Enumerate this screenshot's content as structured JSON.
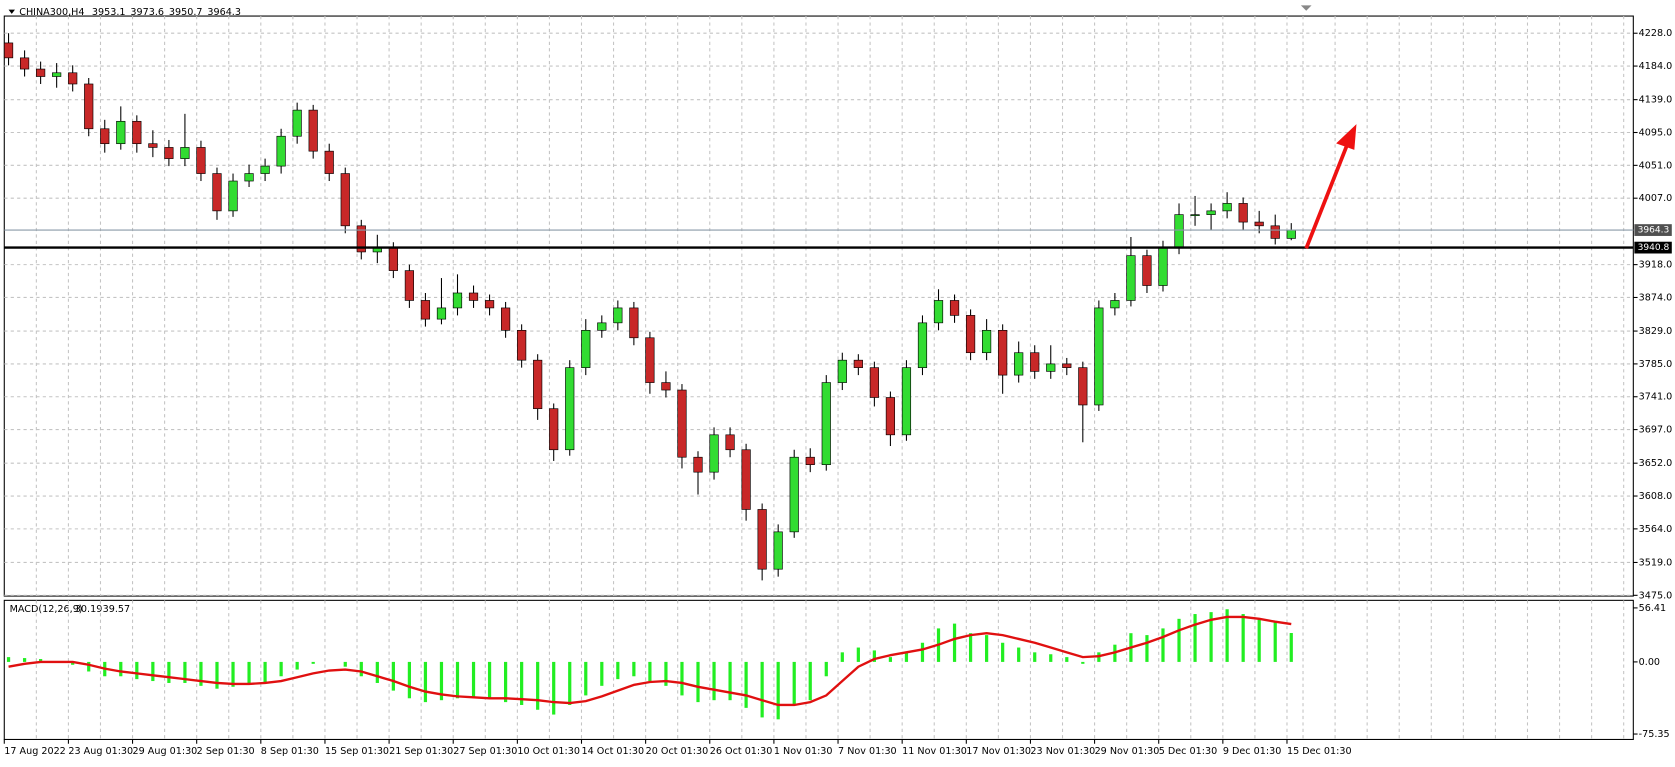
{
  "chart_data": [
    {
      "type": "candlestick",
      "title": "CHINA300,H4",
      "categories": [
        "17 Aug 2022",
        null,
        null,
        null,
        "23 Aug 01:30",
        null,
        null,
        null,
        "29 Aug 01:30",
        null,
        null,
        null,
        "2 Sep 01:30",
        null,
        null,
        null,
        "8 Sep 01:30",
        null,
        null,
        null,
        "15 Sep 01:30",
        null,
        null,
        null,
        "21 Sep 01:30",
        null,
        null,
        null,
        "27 Sep 01:30",
        null,
        null,
        null,
        "10 Oct 01:30",
        null,
        null,
        null,
        "14 Oct 01:30",
        null,
        null,
        null,
        "20 Oct 01:30",
        null,
        null,
        null,
        "26 Oct 01:30",
        null,
        null,
        null,
        "1 Nov 01:30",
        null,
        null,
        null,
        "7 Nov 01:30",
        null,
        null,
        null,
        "11 Nov 01:30",
        null,
        null,
        null,
        "17 Nov 01:30",
        null,
        null,
        null,
        "23 Nov 01:30",
        null,
        null,
        null,
        "29 Nov 01:30",
        null,
        null,
        null,
        "5 Dec 01:30",
        null,
        null,
        null,
        "9 Dec 01:30",
        null,
        null,
        null,
        "15 Dec 01:30"
      ],
      "candles": [
        [
          4215,
          4228,
          4185,
          4195
        ],
        [
          4195,
          4205,
          4170,
          4180
        ],
        [
          4180,
          4190,
          4160,
          4170
        ],
        [
          4170,
          4188,
          4155,
          4175
        ],
        [
          4175,
          4185,
          4150,
          4160
        ],
        [
          4160,
          4168,
          4090,
          4100
        ],
        [
          4100,
          4112,
          4068,
          4080
        ],
        [
          4080,
          4130,
          4072,
          4110
        ],
        [
          4110,
          4118,
          4068,
          4080
        ],
        [
          4080,
          4098,
          4062,
          4075
        ],
        [
          4075,
          4085,
          4050,
          4060
        ],
        [
          4060,
          4120,
          4050,
          4075
        ],
        [
          4075,
          4084,
          4030,
          4040
        ],
        [
          4040,
          4048,
          3978,
          3990
        ],
        [
          3990,
          4040,
          3982,
          4030
        ],
        [
          4030,
          4052,
          4022,
          4040
        ],
        [
          4040,
          4060,
          4030,
          4050
        ],
        [
          4050,
          4100,
          4040,
          4090
        ],
        [
          4090,
          4135,
          4080,
          4125
        ],
        [
          4125,
          4132,
          4060,
          4070
        ],
        [
          4070,
          4080,
          4030,
          4040
        ],
        [
          4040,
          4048,
          3960,
          3970
        ],
        [
          3970,
          3978,
          3925,
          3935
        ],
        [
          3935,
          3958,
          3920,
          3940
        ],
        [
          3940,
          3948,
          3900,
          3910
        ],
        [
          3910,
          3918,
          3860,
          3870
        ],
        [
          3870,
          3880,
          3835,
          3845
        ],
        [
          3845,
          3900,
          3838,
          3860
        ],
        [
          3860,
          3905,
          3850,
          3880
        ],
        [
          3880,
          3890,
          3860,
          3870
        ],
        [
          3870,
          3878,
          3850,
          3860
        ],
        [
          3860,
          3868,
          3820,
          3830
        ],
        [
          3830,
          3838,
          3780,
          3790
        ],
        [
          3790,
          3798,
          3710,
          3725
        ],
        [
          3725,
          3732,
          3655,
          3670
        ],
        [
          3670,
          3790,
          3662,
          3780
        ],
        [
          3780,
          3845,
          3770,
          3830
        ],
        [
          3830,
          3850,
          3820,
          3840
        ],
        [
          3840,
          3870,
          3830,
          3860
        ],
        [
          3860,
          3868,
          3810,
          3820
        ],
        [
          3820,
          3828,
          3745,
          3760
        ],
        [
          3760,
          3775,
          3740,
          3750
        ],
        [
          3750,
          3758,
          3645,
          3660
        ],
        [
          3660,
          3668,
          3610,
          3640
        ],
        [
          3640,
          3700,
          3630,
          3690
        ],
        [
          3690,
          3700,
          3660,
          3670
        ],
        [
          3670,
          3678,
          3575,
          3590
        ],
        [
          3590,
          3598,
          3495,
          3510
        ],
        [
          3510,
          3570,
          3500,
          3560
        ],
        [
          3560,
          3670,
          3552,
          3660
        ],
        [
          3660,
          3672,
          3640,
          3650
        ],
        [
          3650,
          3770,
          3642,
          3760
        ],
        [
          3760,
          3800,
          3750,
          3790
        ],
        [
          3790,
          3798,
          3770,
          3780
        ],
        [
          3780,
          3788,
          3728,
          3740
        ],
        [
          3740,
          3748,
          3675,
          3690
        ],
        [
          3690,
          3790,
          3682,
          3780
        ],
        [
          3780,
          3850,
          3770,
          3840
        ],
        [
          3840,
          3885,
          3830,
          3870
        ],
        [
          3870,
          3878,
          3840,
          3850
        ],
        [
          3850,
          3858,
          3790,
          3800
        ],
        [
          3800,
          3845,
          3790,
          3830
        ],
        [
          3830,
          3838,
          3745,
          3770
        ],
        [
          3770,
          3815,
          3760,
          3800
        ],
        [
          3800,
          3810,
          3765,
          3775
        ],
        [
          3775,
          3810,
          3765,
          3785
        ],
        [
          3785,
          3793,
          3770,
          3780
        ],
        [
          3780,
          3788,
          3680,
          3730
        ],
        [
          3730,
          3870,
          3722,
          3860
        ],
        [
          3860,
          3880,
          3850,
          3870
        ],
        [
          3870,
          3955,
          3862,
          3930
        ],
        [
          3930,
          3938,
          3880,
          3890
        ],
        [
          3890,
          3950,
          3882,
          3940
        ],
        [
          3940,
          4000,
          3932,
          3985
        ],
        [
          3985,
          4010,
          3970,
          3985
        ],
        [
          3985,
          4000,
          3965,
          3990
        ],
        [
          3990,
          4015,
          3980,
          4000
        ],
        [
          4000,
          4008,
          3965,
          3975
        ],
        [
          3975,
          3990,
          3960,
          3970
        ],
        [
          3970,
          3985,
          3945,
          3953.1
        ],
        [
          3953.1,
          3973.6,
          3950.7,
          3964.3
        ]
      ],
      "up_color": "#32dc32",
      "down_color": "#c82828",
      "level": 3940.8,
      "ylim": [
        3474,
        4251
      ],
      "yticks": [
        {
          "value": 4228,
          "label": "4228.0"
        },
        {
          "value": 4184,
          "label": "4184.0"
        },
        {
          "value": 4139,
          "label": "4139.0"
        },
        {
          "value": 4095,
          "label": "4095.0"
        },
        {
          "value": 4051,
          "label": "4051.0"
        },
        {
          "value": 4007,
          "label": "4007.0"
        },
        {
          "value": 3918,
          "label": "3918.0"
        },
        {
          "value": 3874,
          "label": "3874.0"
        },
        {
          "value": 3829,
          "label": "3829.0"
        },
        {
          "value": 3785,
          "label": "3785.0"
        },
        {
          "value": 3741,
          "label": "3741.0"
        },
        {
          "value": 3697,
          "label": "3697.0"
        },
        {
          "value": 3652,
          "label": "3652.0"
        },
        {
          "value": 3608,
          "label": "3608.0"
        },
        {
          "value": 3564,
          "label": "3564.0"
        },
        {
          "value": 3519,
          "label": "3519.0"
        },
        {
          "value": 3475,
          "label": "3475.0"
        }
      ],
      "grid": true
    },
    {
      "type": "macd",
      "title": "MACD(12,26,9)",
      "histogram": {
        "color": "#22ee22",
        "values": [
          5,
          4,
          3,
          0,
          -3,
          -10,
          -15,
          -15,
          -18,
          -20,
          -22,
          -22,
          -25,
          -28,
          -26,
          -24,
          -22,
          -15,
          -8,
          -2,
          0,
          -5,
          -15,
          -22,
          -30,
          -38,
          -42,
          -40,
          -38,
          -37,
          -38,
          -42,
          -45,
          -50,
          -55,
          -45,
          -35,
          -25,
          -18,
          -15,
          -20,
          -25,
          -35,
          -42,
          -40,
          -40,
          -48,
          -58,
          -60,
          -45,
          -40,
          -15,
          10,
          15,
          12,
          5,
          10,
          20,
          35,
          40,
          30,
          28,
          20,
          15,
          10,
          8,
          5,
          -2,
          10,
          18,
          30,
          28,
          35,
          45,
          50,
          52,
          55,
          50,
          45,
          42,
          30.19
        ]
      },
      "signal": {
        "color": "#e01010",
        "values": [
          -5,
          -2,
          0,
          0,
          0,
          -3,
          -7,
          -10,
          -12,
          -14,
          -16,
          -18,
          -20,
          -22,
          -23,
          -23,
          -22,
          -20,
          -16,
          -12,
          -9,
          -8,
          -10,
          -15,
          -20,
          -26,
          -31,
          -34,
          -36,
          -37,
          -38,
          -38,
          -39,
          -40,
          -42,
          -43,
          -41,
          -36,
          -30,
          -24,
          -21,
          -20,
          -22,
          -26,
          -29,
          -32,
          -35,
          -40,
          -45,
          -45,
          -42,
          -35,
          -20,
          -5,
          3,
          7,
          10,
          13,
          18,
          24,
          28,
          30,
          28,
          24,
          20,
          15,
          10,
          5,
          6,
          10,
          15,
          20,
          26,
          33,
          39,
          44,
          47,
          47,
          45,
          42,
          39.57
        ]
      },
      "ylim": [
        -79.9,
        63.2
      ],
      "yticks": [
        56.41,
        {
          "value": 0,
          "label": "0.00"
        },
        -75.35
      ]
    }
  ]
}
